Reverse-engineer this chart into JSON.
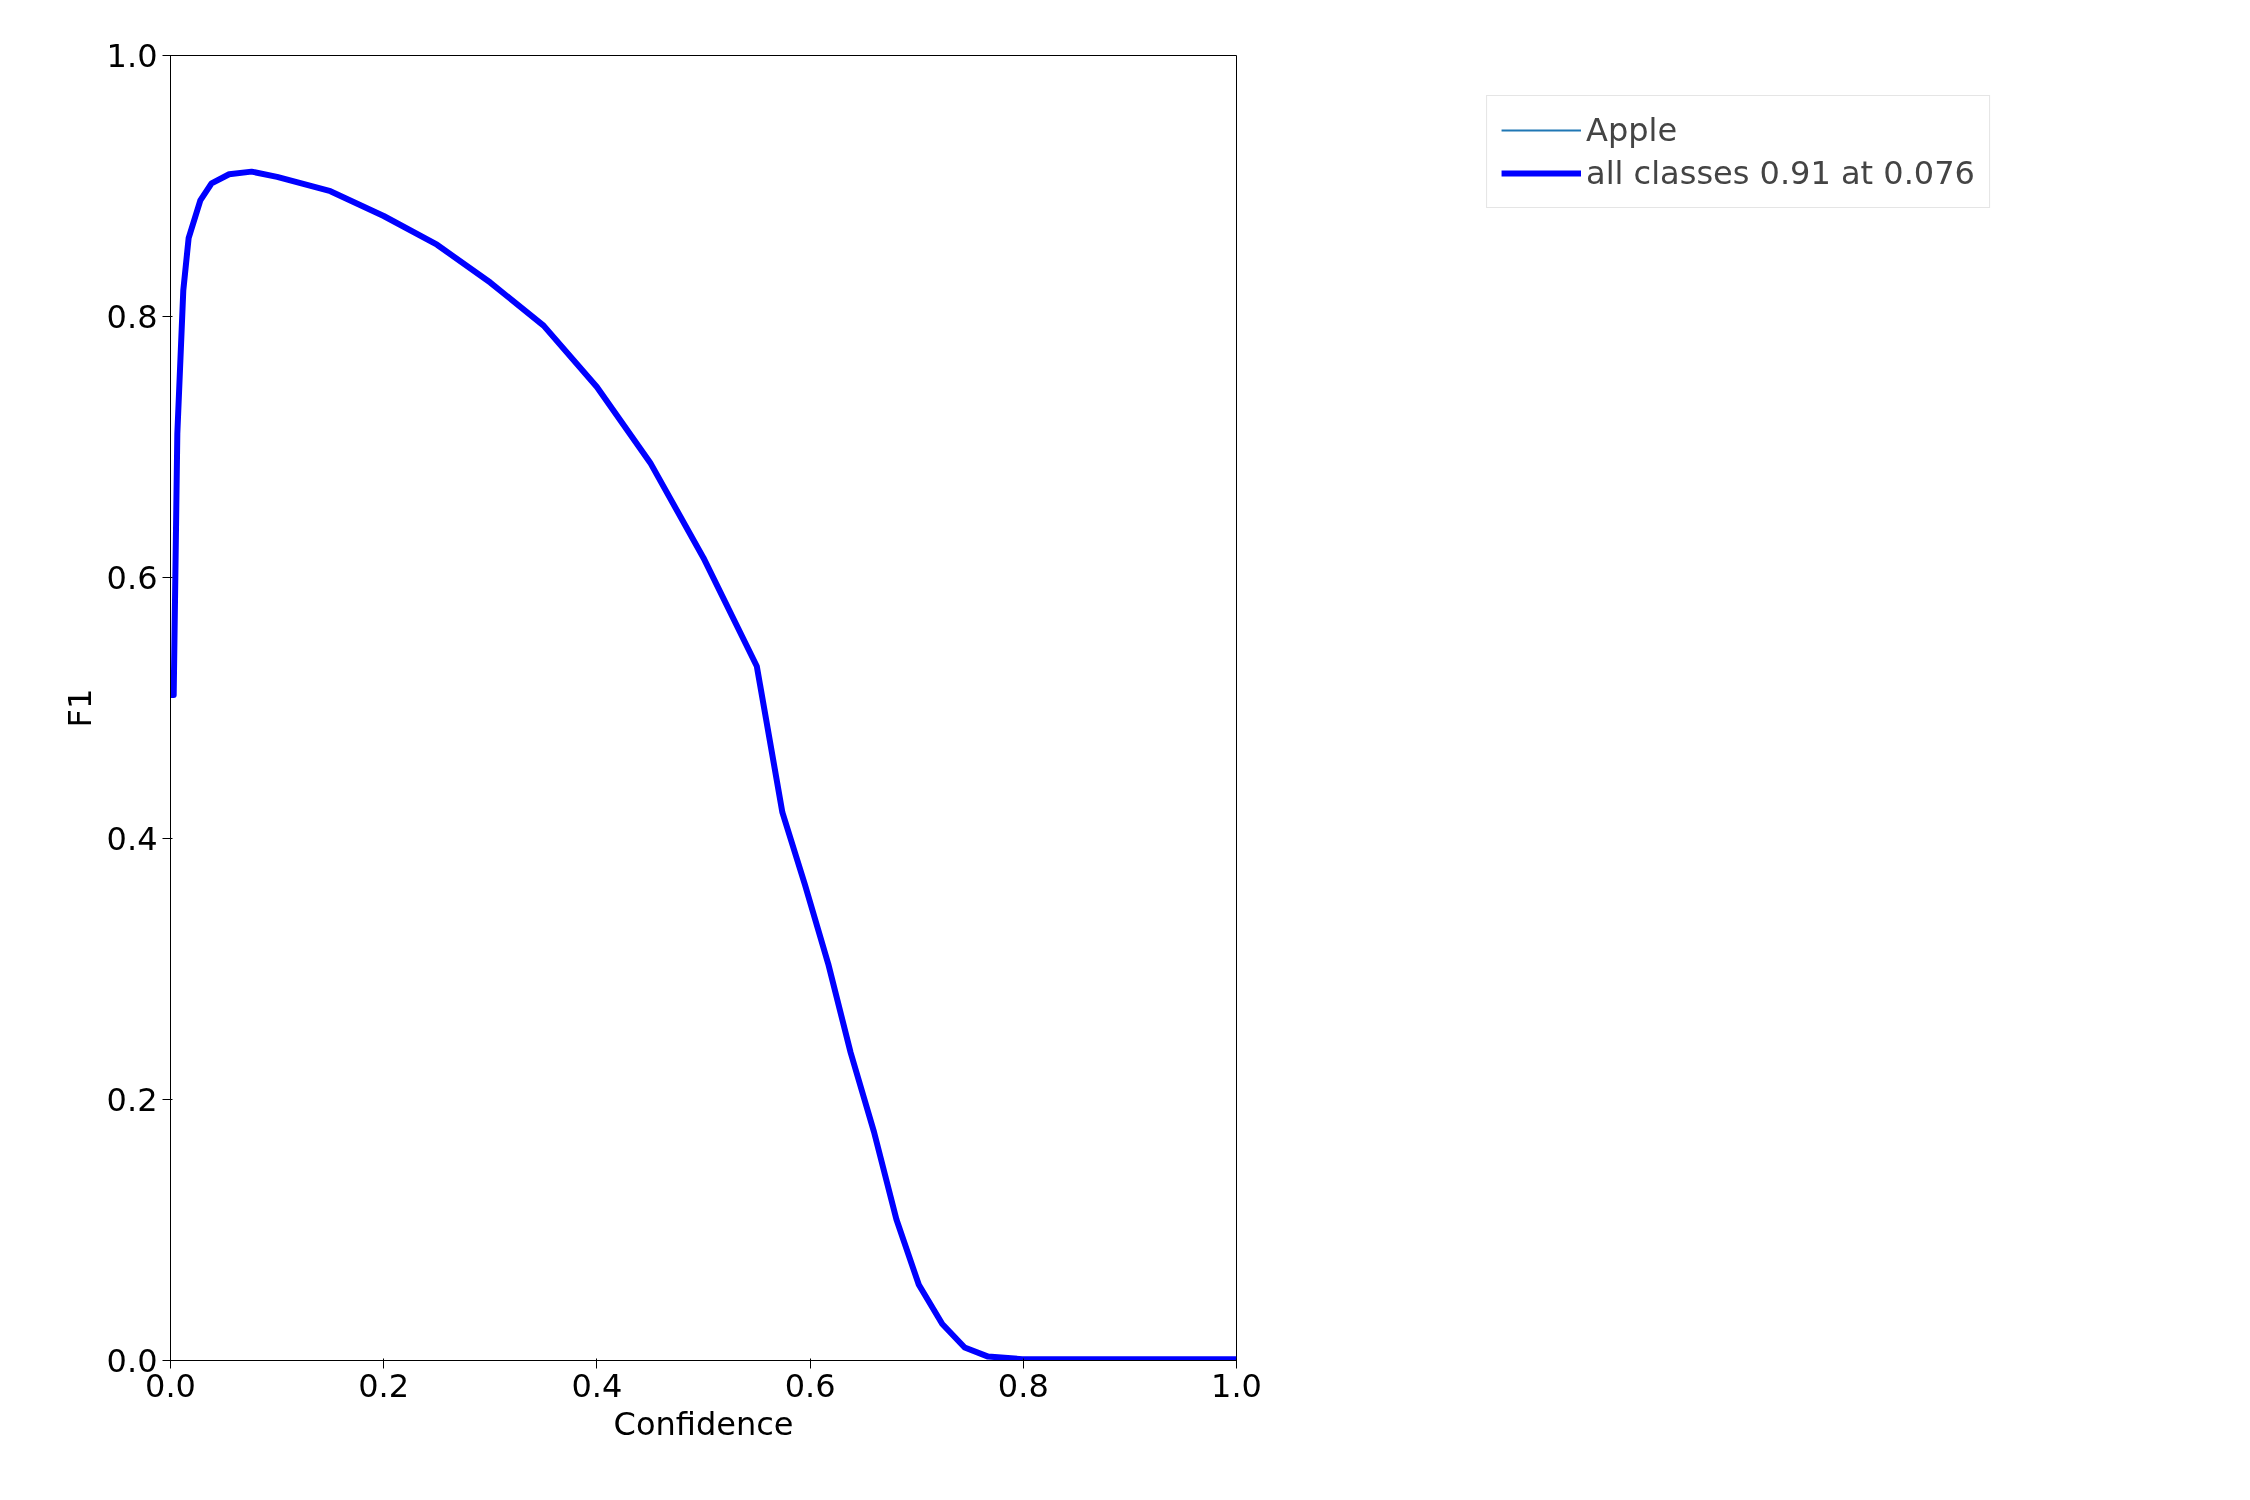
{
  "chart_data": {
    "type": "line",
    "xlabel": "Confidence",
    "ylabel": "F1",
    "x": [
      0,
      0.003,
      0.0064,
      0.012,
      0.017,
      0.028,
      0.0385,
      0.055,
      0.076,
      0.1,
      0.15,
      0.2,
      0.25,
      0.3,
      0.35,
      0.4,
      0.45,
      0.5,
      0.55,
      0.574,
      0.595,
      0.617,
      0.638,
      0.66,
      0.681,
      0.702,
      0.724,
      0.745,
      0.767,
      0.799,
      0.9,
      1.0
    ],
    "series": [
      {
        "name": "Apple",
        "color": "#1f77b4",
        "values": [
          null,
          null,
          null,
          null,
          null,
          null,
          null,
          null,
          null,
          null,
          null,
          null,
          null,
          null,
          null,
          null,
          null,
          null,
          null,
          null,
          null,
          null,
          null,
          null,
          null,
          null,
          null,
          null,
          null,
          null,
          null,
          null
        ]
      },
      {
        "name": "all classes 0.91 at 0.076",
        "color": "#0000ff",
        "values": [
          0.51,
          0.51,
          0.71,
          0.82,
          0.86,
          0.889,
          0.902,
          0.909,
          0.911,
          0.907,
          0.896,
          0.877,
          0.855,
          0.826,
          0.793,
          0.746,
          0.688,
          0.615,
          0.532,
          0.42,
          0.365,
          0.304,
          0.236,
          0.175,
          0.108,
          0.058,
          0.028,
          0.01,
          0.003,
          0.001,
          0.001,
          0.001
        ]
      }
    ],
    "xlim": [
      0,
      1
    ],
    "ylim": [
      0,
      1
    ],
    "xticks": [
      {
        "value": 0,
        "label": "0.0"
      },
      0.2,
      0.4,
      0.6,
      0.8,
      {
        "value": 1,
        "label": "1.0"
      }
    ],
    "yticks": [
      {
        "value": 0,
        "label": "0.0"
      },
      0.2,
      0.4,
      0.6,
      0.8,
      {
        "value": 1,
        "label": "1.0"
      }
    ],
    "grid": false,
    "legend": "top right",
    "marker": "none",
    "line_style": "solid"
  }
}
